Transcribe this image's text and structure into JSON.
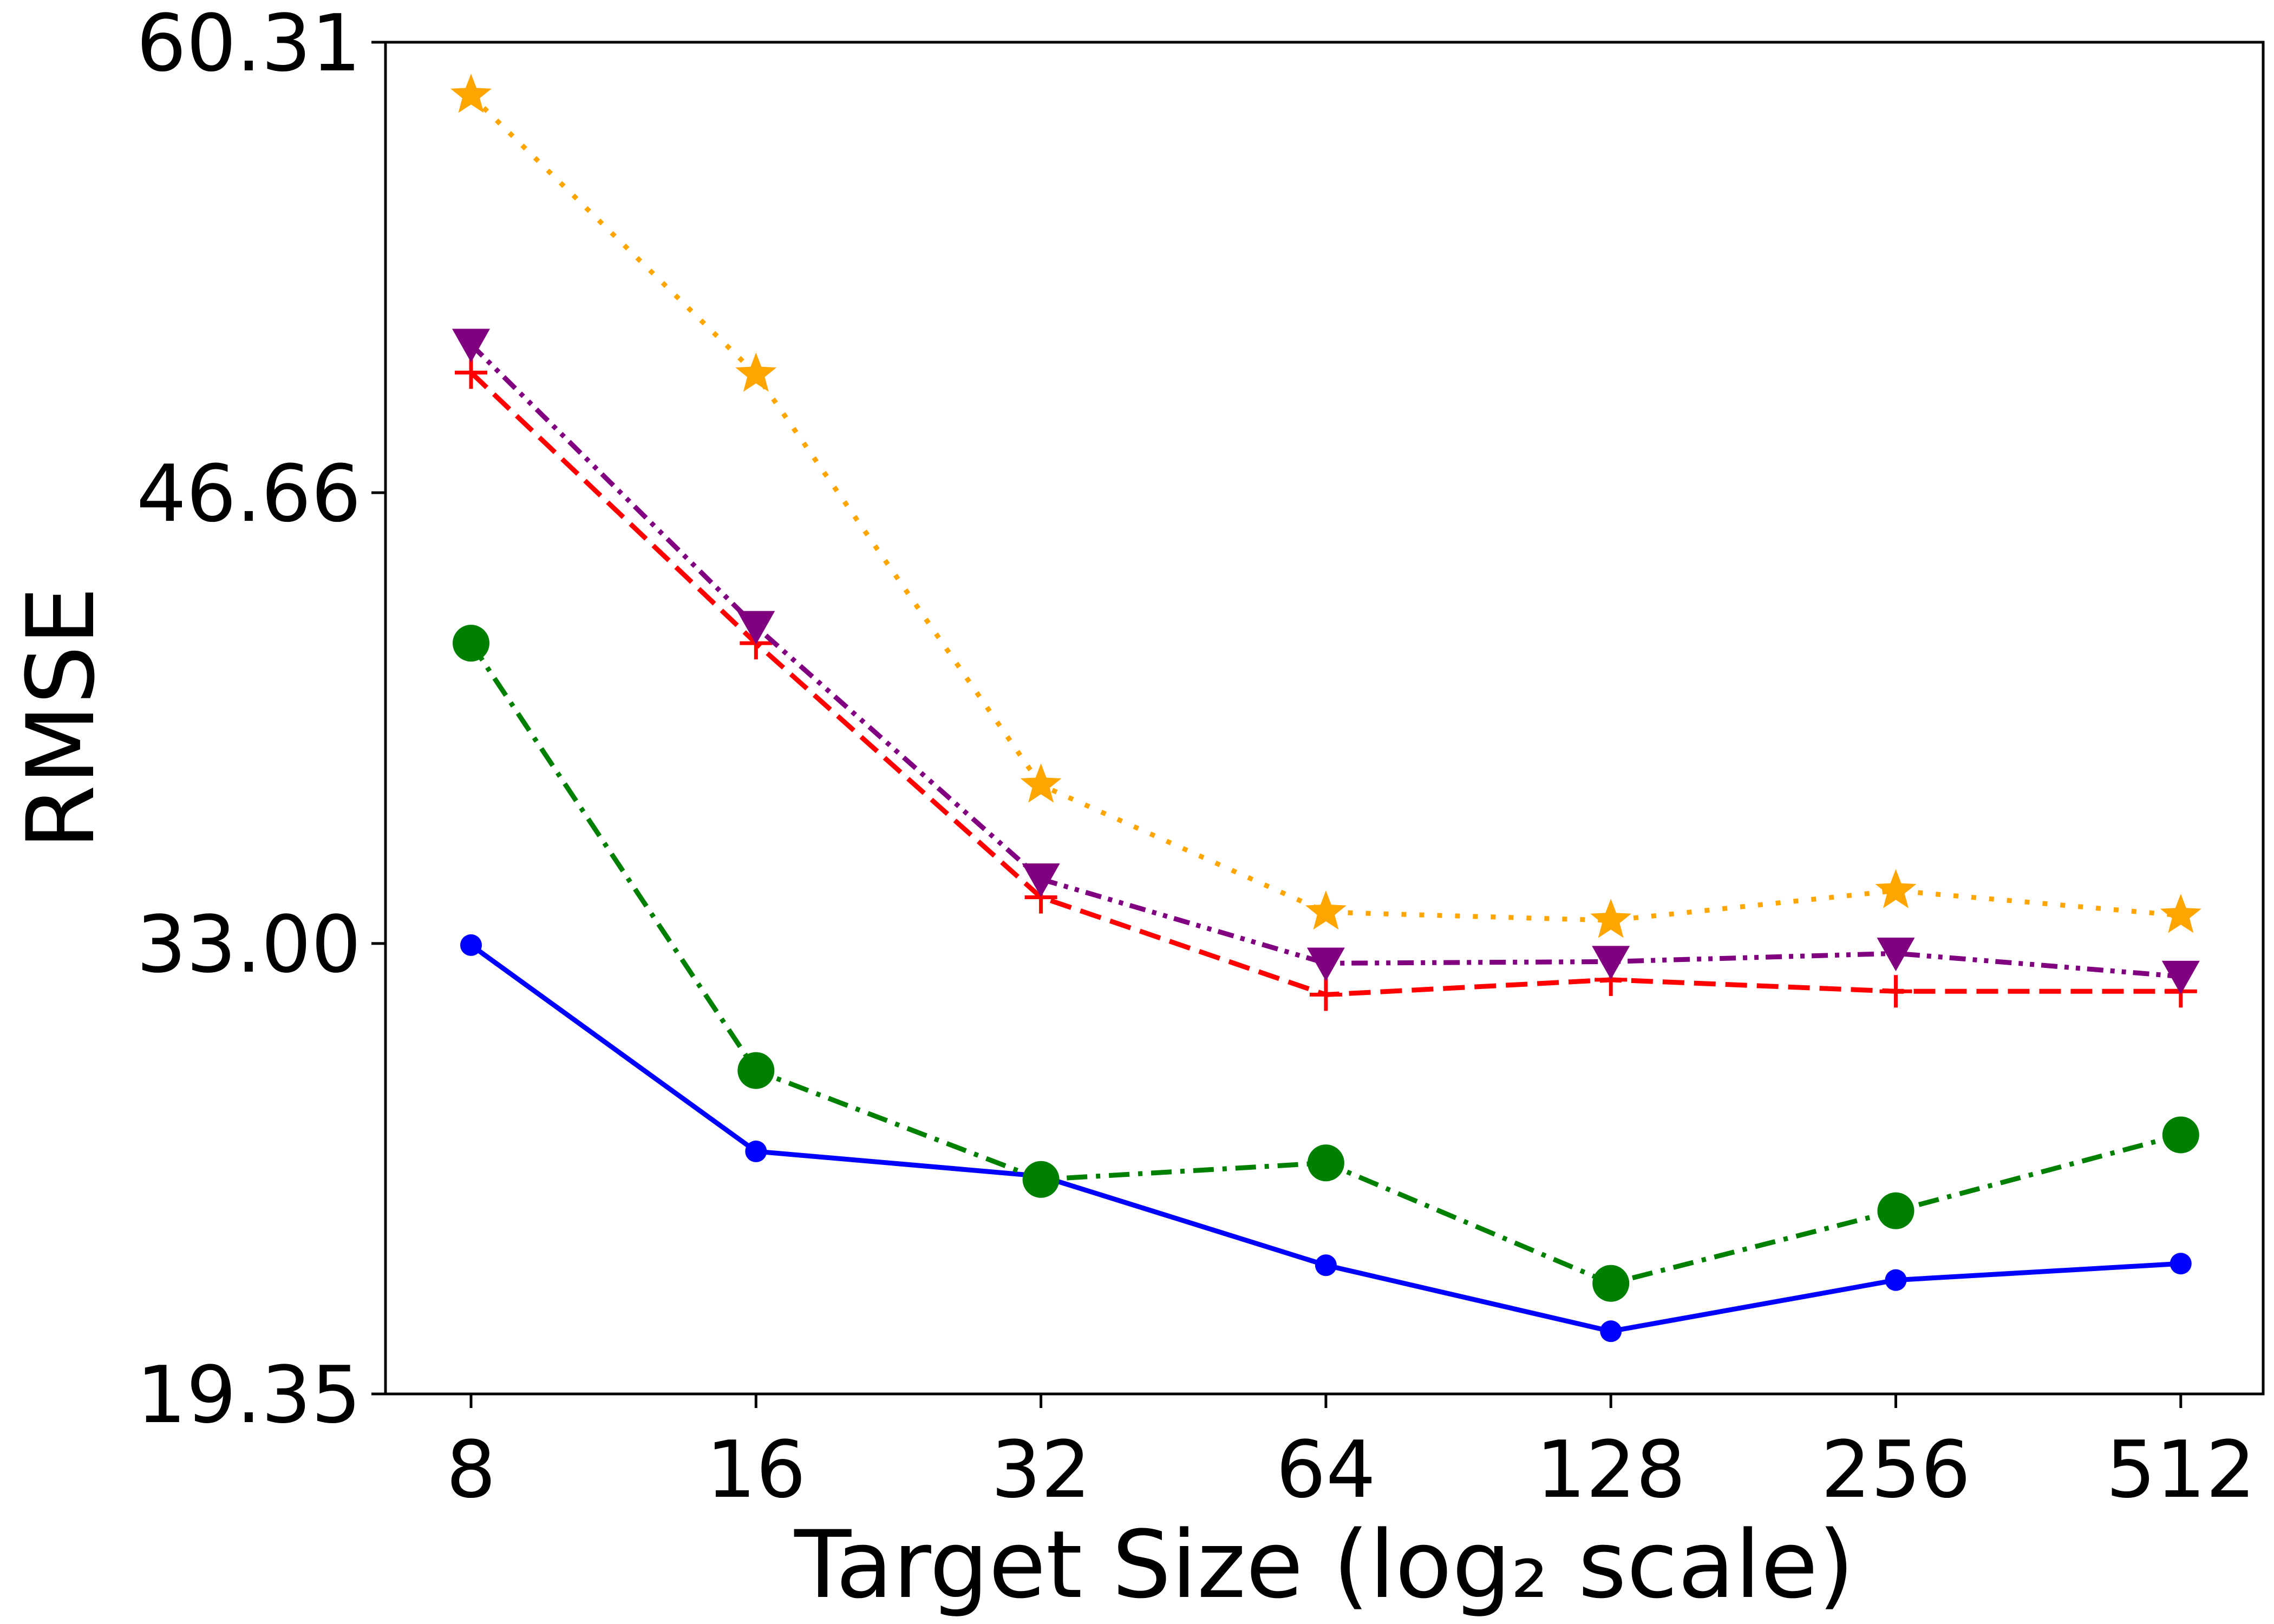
{
  "chart_data": {
    "type": "line",
    "xlabel": "Target Size (log₂ scale)",
    "ylabel": "RMSE",
    "x": [
      8,
      16,
      32,
      64,
      128,
      256,
      512
    ],
    "x_tick_labels": [
      "8",
      "16",
      "32",
      "64",
      "128",
      "256",
      "512"
    ],
    "x_scale": "log2",
    "ylim": [
      19.35,
      60.31
    ],
    "y_ticks": [
      19.35,
      33.0,
      46.66,
      60.31
    ],
    "y_tick_labels": [
      "19.35",
      "33.00",
      "46.66",
      "60.31"
    ],
    "grid": false,
    "legend": "none",
    "series": [
      {
        "values": [
          32.95,
          26.7,
          25.95,
          23.25,
          21.25,
          22.8,
          23.3
        ],
        "color": "#0000ff",
        "line_style": "solid",
        "marker": "small-circle"
      },
      {
        "values": [
          42.1,
          29.15,
          25.85,
          26.35,
          22.7,
          24.9,
          27.2
        ],
        "color": "#008000",
        "line_style": "dash-dot",
        "marker": "circle"
      },
      {
        "values": [
          50.3,
          42.1,
          34.4,
          31.45,
          31.9,
          31.55,
          31.55
        ],
        "color": "#ff0000",
        "line_style": "dashed",
        "marker": "plus"
      },
      {
        "values": [
          51.15,
          42.6,
          34.95,
          32.4,
          32.45,
          32.7,
          32.0
        ],
        "color": "#800080",
        "line_style": "dash-dot-dot",
        "marker": "triangle-down"
      },
      {
        "values": [
          58.7,
          50.25,
          37.8,
          33.95,
          33.7,
          34.6,
          33.85
        ],
        "color": "#ffa500",
        "line_style": "dotted",
        "marker": "star"
      }
    ]
  }
}
